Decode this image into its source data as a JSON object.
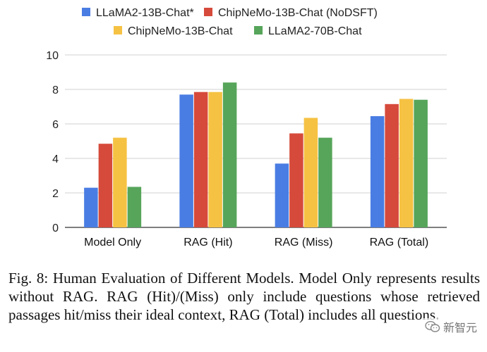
{
  "colors": {
    "llama13": "#4a7de3",
    "nodsft": "#d64a3b",
    "chipnemo": "#f6c243",
    "llama70": "#56a55a",
    "grid": "#d0d0d0",
    "axis": "#333333"
  },
  "chart_data": {
    "type": "bar",
    "title": "",
    "xlabel": "",
    "ylabel": "",
    "ylim": [
      0,
      10
    ],
    "yticks": [
      "0",
      "2",
      "4",
      "6",
      "8",
      "10"
    ],
    "ytick_values": [
      0,
      2,
      4,
      6,
      8,
      10
    ],
    "grid": true,
    "legend_position": "top",
    "categories": [
      "Model Only",
      "RAG (Hit)",
      "RAG (Miss)",
      "RAG (Total)"
    ],
    "series": [
      {
        "name": "LLaMA2-13B-Chat*",
        "color_key": "llama13",
        "values": [
          2.3,
          7.7,
          3.7,
          6.45
        ]
      },
      {
        "name": "ChipNeMo-13B-Chat (NoDSFT)",
        "color_key": "nodsft",
        "values": [
          4.85,
          7.85,
          5.45,
          7.15
        ]
      },
      {
        "name": "ChipNeMo-13B-Chat",
        "color_key": "chipnemo",
        "values": [
          5.2,
          7.85,
          6.35,
          7.45
        ]
      },
      {
        "name": "LLaMA2-70B-Chat",
        "color_key": "llama70",
        "values": [
          2.35,
          8.4,
          5.2,
          7.4
        ]
      }
    ]
  },
  "caption": "Fig. 8: Human Evaluation of Different Models. Model Only represents results without RAG. RAG (Hit)/(Miss) only include questions whose retrieved passages hit/miss their ideal context, RAG (Total) includes all questions.",
  "watermark": {
    "text": "新智元",
    "icon": "wechat-icon"
  }
}
